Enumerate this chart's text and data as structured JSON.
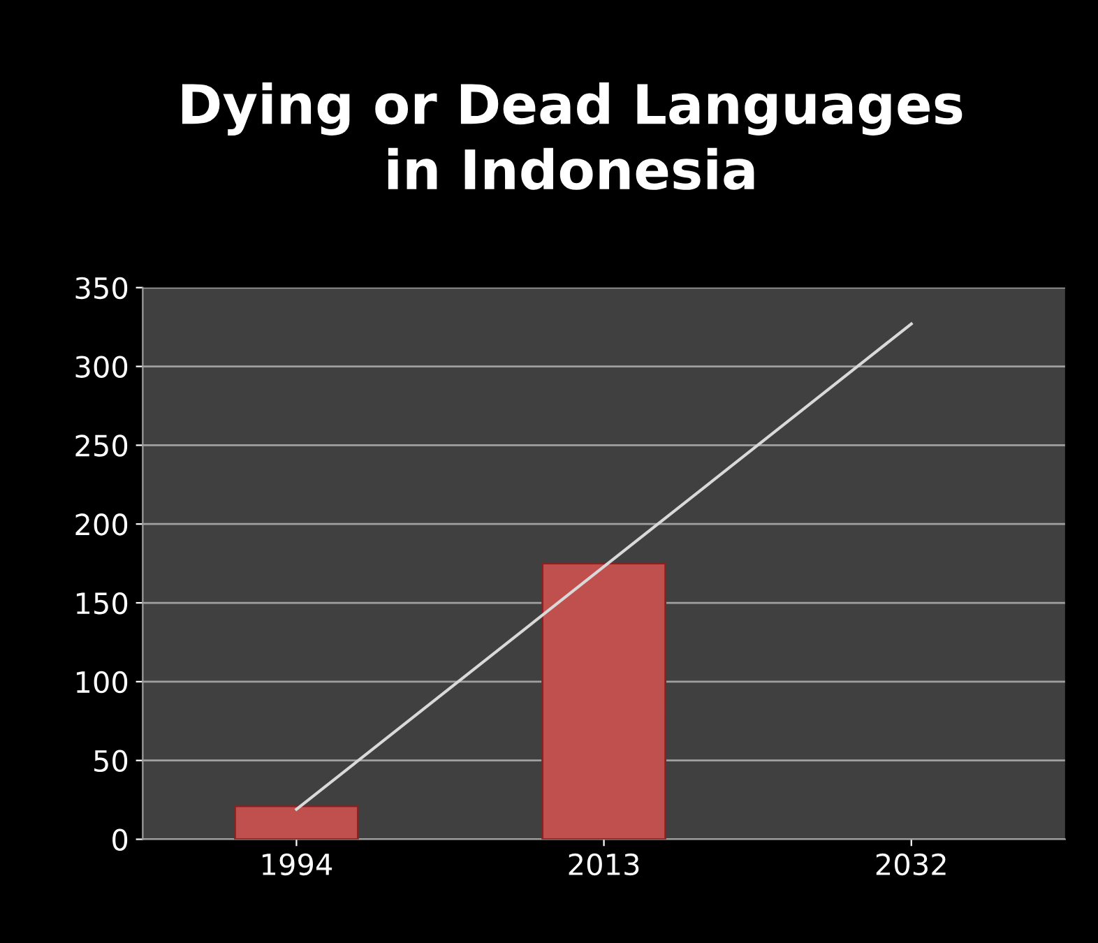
{
  "chart_data": {
    "type": "bar",
    "title": "Dying or Dead Languages\nin Indonesia",
    "categories": [
      "1994",
      "2013",
      "2032"
    ],
    "series": [
      {
        "color": "#c0504d",
        "values": [
          21,
          175,
          null
        ]
      },
      {
        "type": "line",
        "color": "#d9d9d9",
        "values": [
          19,
          173,
          327
        ]
      }
    ],
    "ylim": [
      0,
      350
    ],
    "yticks": [
      0,
      50,
      100,
      150,
      200,
      250,
      300,
      350
    ],
    "grid": "y",
    "legend": false
  }
}
